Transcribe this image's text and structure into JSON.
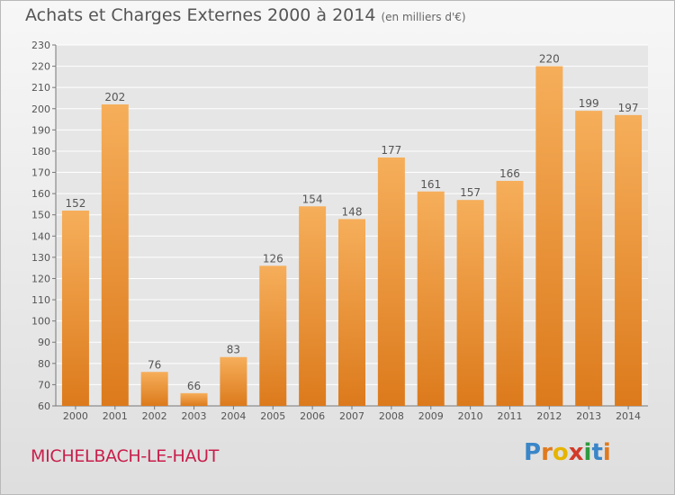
{
  "title": "Achats et Charges Externes 2000 à 2014",
  "subtitle": "(en milliers d'€)",
  "commune": "MICHELBACH-LE-HAUT",
  "logo": {
    "text": "Proxiti",
    "letter_colors": [
      "#3a86c8",
      "#e07a1f",
      "#e6b400",
      "#d23a2a",
      "#2e9a3e",
      "#3a86c8",
      "#e07a1f"
    ]
  },
  "colors": {
    "bar": "#f09a3e",
    "bar_dark": "#dc7a1c",
    "bar_light": "#f6ae5a",
    "grid": "#ffffff",
    "text": "#555555"
  },
  "chart_data": {
    "type": "bar",
    "title": "Achats et Charges Externes 2000 à 2014",
    "categories": [
      "2000",
      "2001",
      "2002",
      "2003",
      "2004",
      "2005",
      "2006",
      "2007",
      "2008",
      "2009",
      "2010",
      "2011",
      "2012",
      "2013",
      "2014"
    ],
    "values": [
      152,
      202,
      76,
      66,
      83,
      126,
      154,
      148,
      177,
      161,
      157,
      166,
      220,
      199,
      197
    ],
    "ylim": [
      60,
      230
    ],
    "ytick_step": 10,
    "grid": true
  }
}
